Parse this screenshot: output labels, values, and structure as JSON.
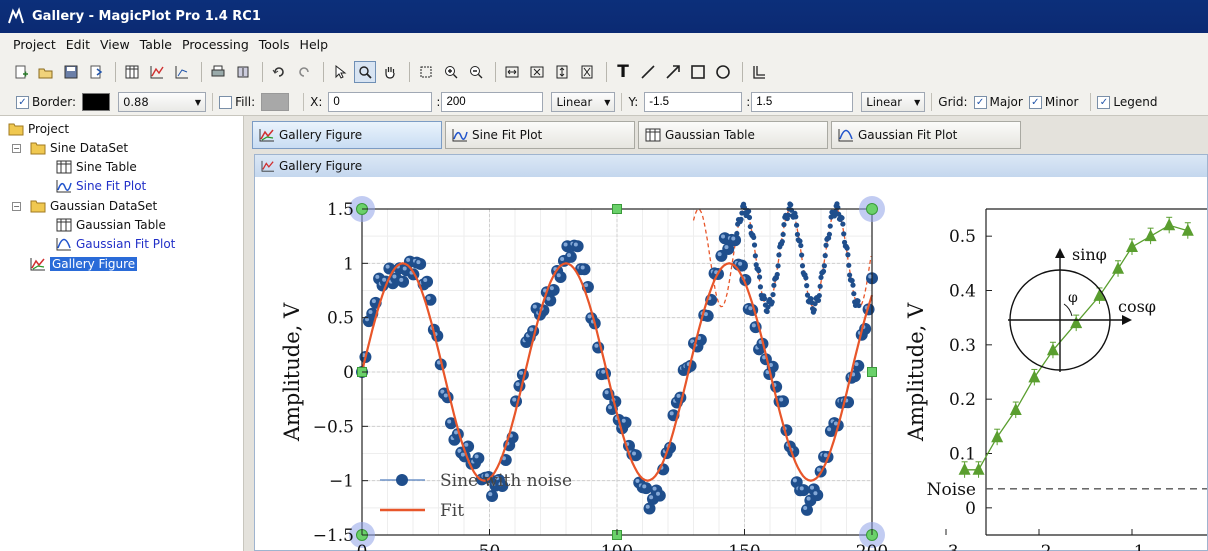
{
  "window": {
    "title": "Gallery - MagicPlot Pro 1.4 RC1"
  },
  "menu": [
    "Project",
    "Edit",
    "View",
    "Table",
    "Processing",
    "Tools",
    "Help"
  ],
  "format_bar": {
    "border_label": "Border:",
    "border_width": "0.88",
    "fill_label": "Fill:",
    "x_label": "X:",
    "x_from": "0",
    "x_to": "200",
    "x_scale": "Linear",
    "y_label": "Y:",
    "y_from": "-1.5",
    "y_to": "1.5",
    "y_scale": "Linear",
    "grid_label": "Grid:",
    "major_label": "Major",
    "minor_label": "Minor",
    "legend_label": "Legend",
    "border_color": "#000000",
    "fill_color": "#a8a8a8"
  },
  "tree": {
    "root": "Project",
    "items": [
      {
        "label": "Sine DataSet",
        "kind": "folder"
      },
      {
        "label": "Sine Table",
        "kind": "table"
      },
      {
        "label": "Sine Fit Plot",
        "kind": "plot"
      },
      {
        "label": "Gaussian DataSet",
        "kind": "folder"
      },
      {
        "label": "Gaussian Table",
        "kind": "table"
      },
      {
        "label": "Gaussian Fit Plot",
        "kind": "plot"
      },
      {
        "label": "Gallery Figure",
        "kind": "figure"
      }
    ]
  },
  "tabs": [
    "Gallery Figure",
    "Sine Fit Plot",
    "Gaussian Table",
    "Gaussian Fit Plot"
  ],
  "document": {
    "title": "Gallery Figure"
  },
  "chart_data": [
    {
      "type": "scatter",
      "ylabel": "Amplitude, V",
      "xlim": [
        0,
        200
      ],
      "ylim": [
        -1.5,
        1.5
      ],
      "x_ticks": [
        "0",
        "50",
        "100",
        "150",
        "200"
      ],
      "y_ticks": [
        "1.5",
        "1",
        "0.5",
        "0",
        "−0.5",
        "−1",
        "−1.5"
      ],
      "grid": true,
      "legend_position": "bottom-left",
      "series": [
        {
          "name": "Sine with noise",
          "kind": "markers",
          "color": "#1f4e8c",
          "function": "sine",
          "period": 64,
          "amplitude": 1.0,
          "x_range": [
            0,
            200
          ]
        },
        {
          "name": "Fit",
          "kind": "line",
          "color": "#e8562a",
          "function": "sine",
          "period": 64,
          "amplitude": 1.0,
          "x_range": [
            0,
            200
          ]
        }
      ],
      "inset_series_color": "#1f4e8c",
      "inset_fit_color": "#e8562a"
    },
    {
      "type": "line",
      "ylabel": "Amplitude, V",
      "xlim": [
        -3,
        0
      ],
      "ylim": [
        -0.05,
        0.55
      ],
      "x_ticks": [
        "−3",
        "−2",
        "−1"
      ],
      "y_ticks": [
        "0.5",
        "0.4",
        "0.3",
        "0.2",
        "0.1",
        "0"
      ],
      "noise_label": "Noise",
      "noise_level": 0.035,
      "series": [
        {
          "name": "",
          "color": "#5a9e2f",
          "x": [
            -2.8,
            -2.65,
            -2.45,
            -2.25,
            -2.05,
            -1.85,
            -1.6,
            -1.35,
            -1.15,
            -1.0,
            -0.8,
            -0.6,
            -0.4
          ],
          "y": [
            0.07,
            0.07,
            0.13,
            0.18,
            0.24,
            0.29,
            0.34,
            0.39,
            0.44,
            0.48,
            0.5,
            0.52,
            0.51
          ]
        }
      ],
      "inset": {
        "labels": [
          "sinφ",
          "cosφ",
          "φ"
        ]
      }
    }
  ]
}
